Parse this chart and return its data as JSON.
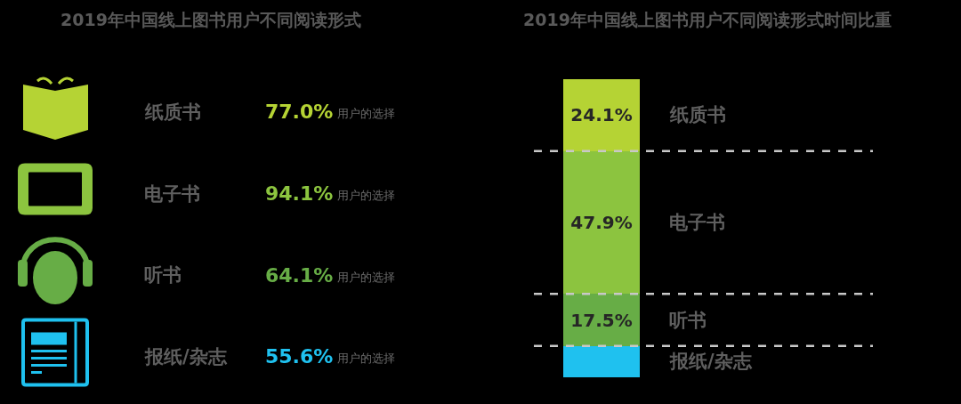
{
  "chart_data": [
    {
      "type": "other",
      "title": "2019年中国线上图书用户不同阅读形式",
      "categories": [
        "纸质书",
        "电子书",
        "听书",
        "报纸/杂志"
      ],
      "value_labels": [
        "77.0%",
        "94.1%",
        "64.1%",
        "55.6%"
      ],
      "colors": [
        "#b5d334",
        "#8cc43f",
        "#67ad46",
        "#1fc1ef"
      ],
      "annotations": [
        "用户的选择",
        "用户的选择",
        "用户的选择",
        "用户的选择"
      ]
    },
    {
      "type": "bar",
      "title": "2019年中国线上图书用户不同阅读形式时间比重",
      "stacked": true,
      "categories": [
        null
      ],
      "series": [
        {
          "name": "报纸/杂志",
          "color": "#1fc1ef",
          "values": [
            10.5
          ],
          "value_labels": [
            null
          ]
        },
        {
          "name": "听书",
          "color": "#67ad46",
          "values": [
            17.5
          ],
          "value_labels": [
            "17.5%"
          ]
        },
        {
          "name": "电子书",
          "color": "#8cc43f",
          "values": [
            47.9
          ],
          "value_labels": [
            "47.9%"
          ]
        },
        {
          "name": "纸质书",
          "color": "#b5d334",
          "values": [
            24.1
          ],
          "value_labels": [
            "24.1%"
          ]
        }
      ],
      "ylim": [
        0,
        100
      ],
      "tick_labels": false,
      "ref_lines": [
        {
          "axis": "y",
          "value": 75.9,
          "color": "#c8c8c8",
          "line_style": "dashed"
        },
        {
          "axis": "y",
          "value": 28.0,
          "color": "#c8c8c8",
          "line_style": "dashed"
        },
        {
          "axis": "y",
          "value": 10.5,
          "color": "#c8c8c8",
          "line_style": "dashed"
        }
      ]
    }
  ]
}
